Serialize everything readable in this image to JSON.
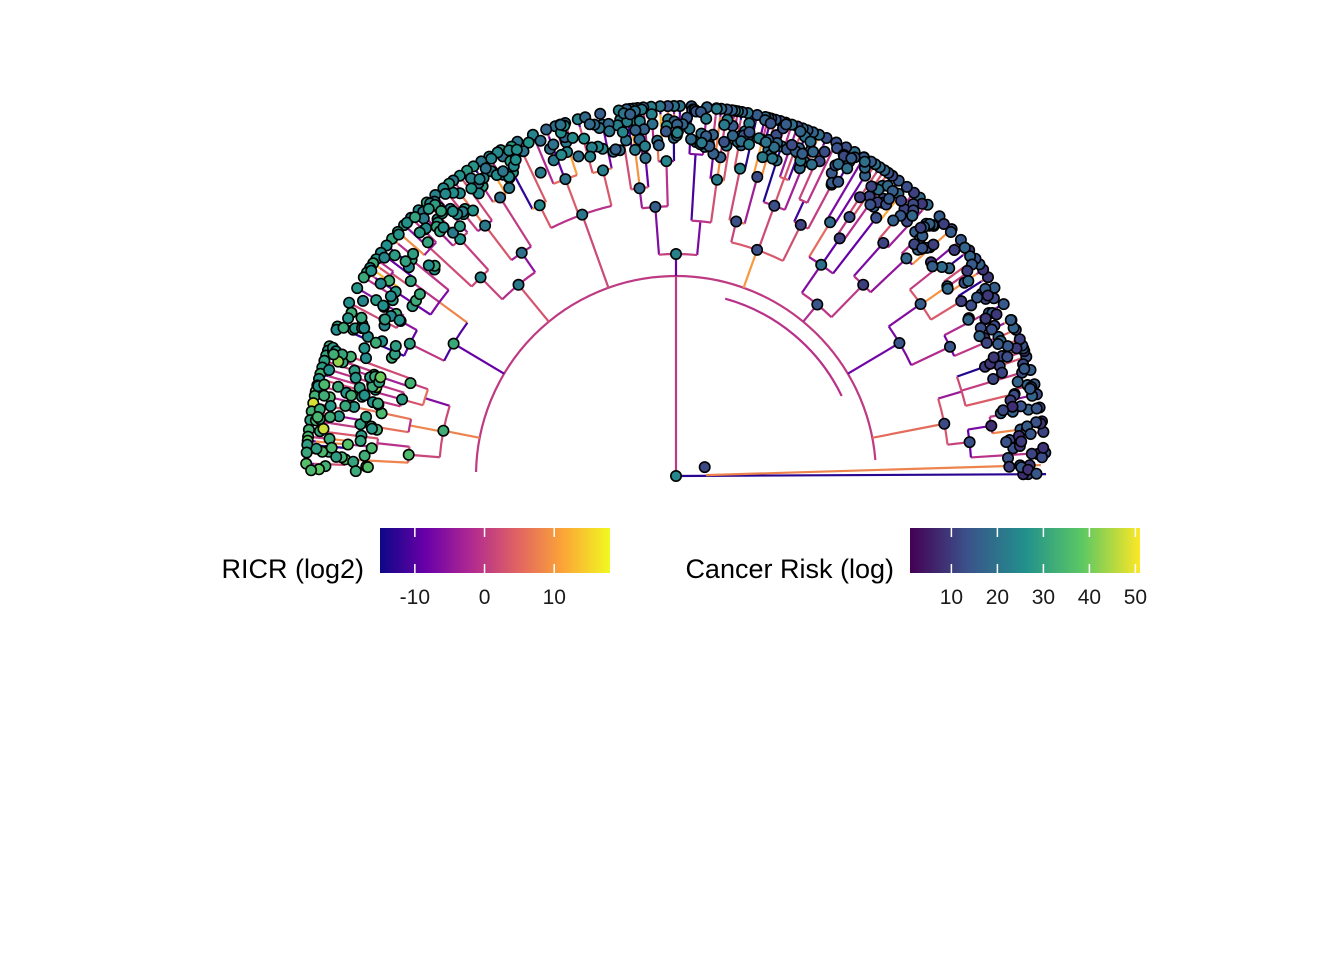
{
  "chart_data": {
    "type": "other",
    "kind": "half-circular phylogenetic tree",
    "branch_color": {
      "legend_title": "RICR (log2)",
      "palette": "plasma",
      "range": [
        -15,
        18
      ],
      "ticks": [
        -10,
        0,
        10
      ],
      "tick_labels": [
        "-10",
        "0",
        "10"
      ],
      "colors": [
        "#0d0887",
        "#6a00a8",
        "#b12a90",
        "#e16462",
        "#fca636",
        "#f0f921"
      ]
    },
    "node_fill": {
      "legend_title": "Cancer Risk (log)",
      "palette": "viridis",
      "range": [
        1,
        51
      ],
      "ticks": [
        10,
        20,
        30,
        40,
        50
      ],
      "tick_labels": [
        "10",
        "20",
        "30",
        "40",
        "50"
      ],
      "colors": [
        "#440154",
        "#3b528b",
        "#21908c",
        "#5dc863",
        "#fde725"
      ]
    },
    "node_outline_color": "#000000"
  }
}
